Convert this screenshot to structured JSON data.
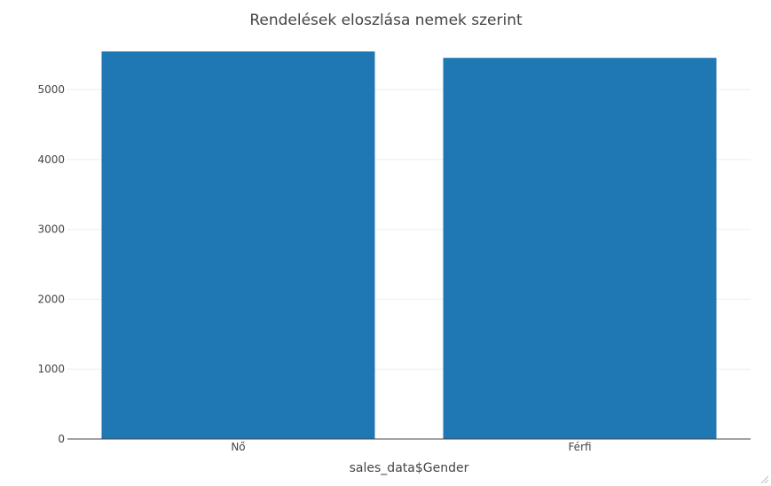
{
  "chart_data": {
    "type": "bar",
    "title": "Rendelések eloszlása nemek szerint",
    "xlabel": "sales_data$Gender",
    "ylabel": "",
    "categories": [
      "Nő",
      "Férfi"
    ],
    "values": [
      5546,
      5454
    ],
    "ylim": [
      0,
      5546
    ],
    "yticks": [
      0,
      1000,
      2000,
      3000,
      4000,
      5000
    ],
    "ytick_labels": [
      "0",
      "1000",
      "2000",
      "3000",
      "4000",
      "5000"
    ],
    "grid": true,
    "bar_color": "#1f77b4"
  }
}
